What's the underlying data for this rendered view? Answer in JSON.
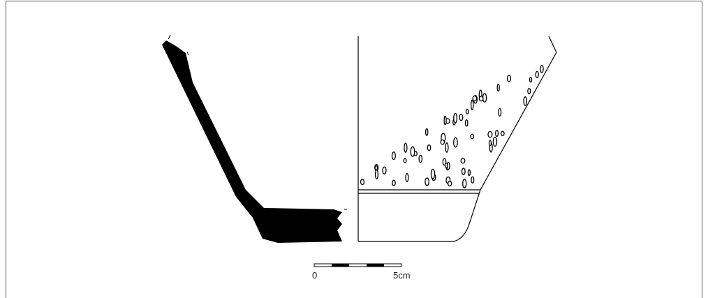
{
  "scale_bar": {
    "labels": [
      "0",
      "5cm"
    ]
  }
}
